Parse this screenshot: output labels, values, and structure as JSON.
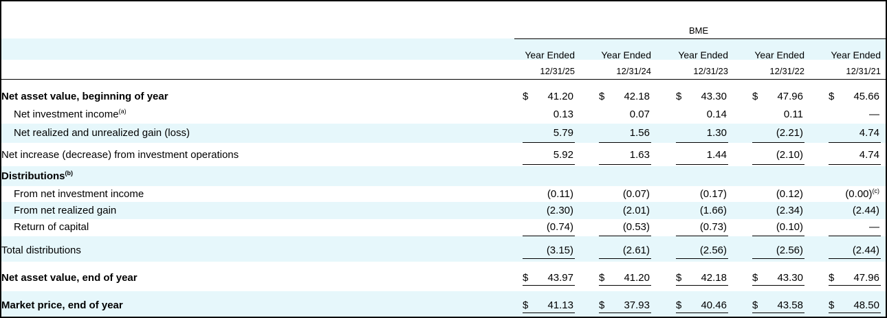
{
  "header": {
    "group": "BME",
    "columns": [
      {
        "line1": "Year Ended",
        "line2": "12/31/25"
      },
      {
        "line1": "Year Ended",
        "line2": "12/31/24"
      },
      {
        "line1": "Year Ended",
        "line2": "12/31/23"
      },
      {
        "line1": "Year Ended",
        "line2": "12/31/22"
      },
      {
        "line1": "Year Ended",
        "line2": "12/31/21"
      }
    ]
  },
  "rows": [
    {
      "label": "Net asset value, beginning of year",
      "currency": "$",
      "values": [
        "41.20",
        "42.18",
        "43.30",
        "47.96",
        "45.66"
      ]
    },
    {
      "label": "Net investment income",
      "note": "(a)",
      "values": [
        "0.13",
        "0.07",
        "0.14",
        "0.11",
        "—"
      ]
    },
    {
      "label": "Net realized and unrealized gain (loss)",
      "values": [
        "5.79",
        "1.56",
        "1.30",
        "(2.21)",
        "4.74"
      ]
    },
    {
      "label": "Net increase (decrease) from investment operations",
      "values": [
        "5.92",
        "1.63",
        "1.44",
        "(2.10)",
        "4.74"
      ]
    },
    {
      "label": "Distributions",
      "note": "(b)"
    },
    {
      "label": "From net investment income",
      "values": [
        "(0.11)",
        "(0.07)",
        "(0.17)",
        "(0.12)",
        "(0.00)"
      ],
      "value_notes": {
        "4": "(c)"
      }
    },
    {
      "label": "From net realized gain",
      "values": [
        "(2.30)",
        "(2.01)",
        "(1.66)",
        "(2.34)",
        "(2.44)"
      ]
    },
    {
      "label": "Return of capital",
      "values": [
        "(0.74)",
        "(0.53)",
        "(0.73)",
        "(0.10)",
        "—"
      ]
    },
    {
      "label": "Total distributions",
      "values": [
        "(3.15)",
        "(2.61)",
        "(2.56)",
        "(2.56)",
        "(2.44)"
      ]
    },
    {
      "label": "Net asset value, end of year",
      "currency": "$",
      "values": [
        "43.97",
        "41.20",
        "42.18",
        "43.30",
        "47.96"
      ]
    },
    {
      "label": "Market price, end of year",
      "currency": "$",
      "values": [
        "41.13",
        "37.93",
        "40.46",
        "43.58",
        "48.50"
      ]
    }
  ]
}
